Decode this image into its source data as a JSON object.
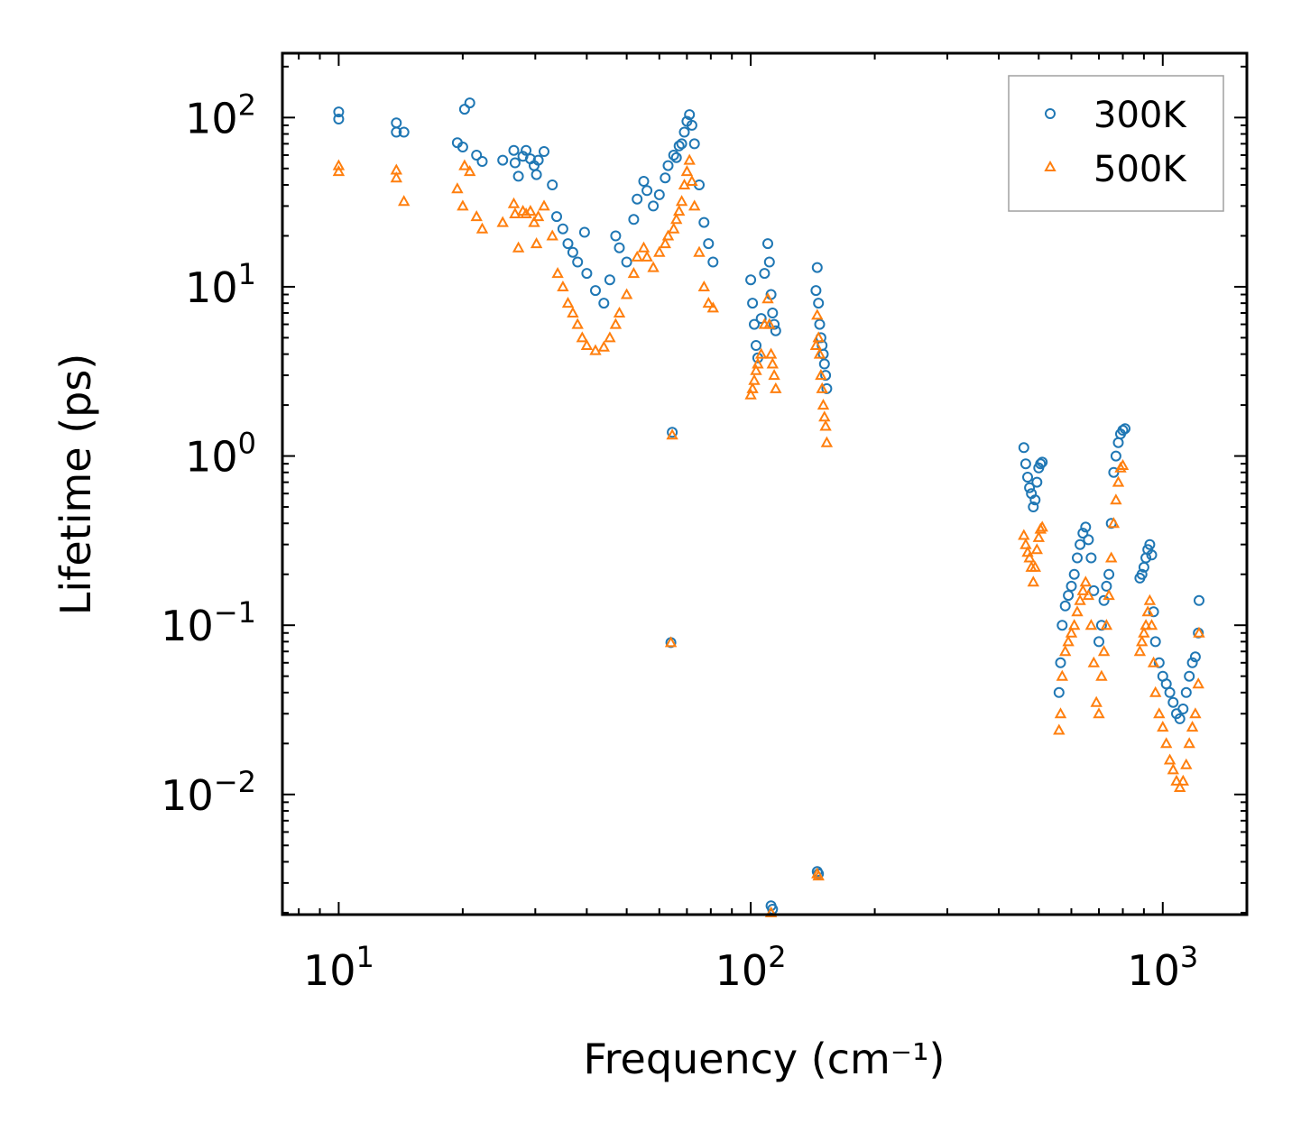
{
  "chart_data": {
    "type": "scatter",
    "xscale": "log",
    "yscale": "log",
    "xlabel": "Frequency (cm⁻¹)",
    "ylabel": "Lifetime (ps)",
    "xlim": [
      7.3,
      1600
    ],
    "ylim": [
      0.00195,
      240
    ],
    "x_ticks": [
      {
        "base": "10",
        "exp": "1",
        "value": 10
      },
      {
        "base": "10",
        "exp": "2",
        "value": 100
      },
      {
        "base": "10",
        "exp": "3",
        "value": 1000
      }
    ],
    "y_ticks": [
      {
        "base": "10",
        "exp": "−2",
        "value": 0.01
      },
      {
        "base": "10",
        "exp": "−1",
        "value": 0.1
      },
      {
        "base": "10",
        "exp": "0",
        "value": 1
      },
      {
        "base": "10",
        "exp": "1",
        "value": 10
      },
      {
        "base": "10",
        "exp": "2",
        "value": 100
      }
    ],
    "legend": {
      "position": "top-right"
    },
    "series": [
      {
        "name": "300K",
        "marker": "circle",
        "color": "#1f77b4",
        "points": [
          [
            10,
            108
          ],
          [
            10,
            98
          ],
          [
            13.8,
            93
          ],
          [
            13.8,
            82
          ],
          [
            14.4,
            82
          ],
          [
            19.4,
            71
          ],
          [
            20,
            67
          ],
          [
            20.2,
            112
          ],
          [
            20.8,
            122
          ],
          [
            21.6,
            60
          ],
          [
            22.3,
            55
          ],
          [
            25,
            56
          ],
          [
            26.6,
            64
          ],
          [
            26.8,
            54
          ],
          [
            27.3,
            45
          ],
          [
            28,
            59
          ],
          [
            28.5,
            64
          ],
          [
            29.2,
            57
          ],
          [
            29.8,
            52
          ],
          [
            30.2,
            46
          ],
          [
            30.5,
            56
          ],
          [
            31.5,
            63
          ],
          [
            33,
            40
          ],
          [
            33.8,
            26
          ],
          [
            35,
            22
          ],
          [
            36,
            18
          ],
          [
            37,
            16
          ],
          [
            38,
            14
          ],
          [
            39.5,
            21
          ],
          [
            40,
            12
          ],
          [
            42,
            9.5
          ],
          [
            44,
            8
          ],
          [
            45.5,
            11
          ],
          [
            47,
            20
          ],
          [
            48,
            17
          ],
          [
            50,
            14
          ],
          [
            52,
            25
          ],
          [
            53,
            33
          ],
          [
            55,
            42
          ],
          [
            56,
            37
          ],
          [
            58,
            30
          ],
          [
            60,
            35
          ],
          [
            62,
            44
          ],
          [
            63,
            52
          ],
          [
            64.5,
            1.38
          ],
          [
            64,
            0.079
          ],
          [
            65,
            60
          ],
          [
            66,
            58
          ],
          [
            67,
            68
          ],
          [
            68,
            70
          ],
          [
            69,
            82
          ],
          [
            70,
            95
          ],
          [
            71,
            104
          ],
          [
            72,
            90
          ],
          [
            73,
            70
          ],
          [
            75,
            40
          ],
          [
            77,
            24
          ],
          [
            79,
            18
          ],
          [
            81,
            14
          ],
          [
            100,
            11
          ],
          [
            101,
            8
          ],
          [
            102,
            6
          ],
          [
            103,
            4.5
          ],
          [
            104,
            3.8
          ],
          [
            106,
            6.5
          ],
          [
            108,
            12
          ],
          [
            110,
            18
          ],
          [
            111,
            14
          ],
          [
            112,
            9
          ],
          [
            113,
            7
          ],
          [
            114,
            6
          ],
          [
            115,
            5.5
          ],
          [
            112,
            0.0022
          ],
          [
            113,
            0.0021
          ],
          [
            144,
            9.5
          ],
          [
            145,
            13
          ],
          [
            146,
            8
          ],
          [
            147,
            6
          ],
          [
            148,
            5
          ],
          [
            149,
            4.5
          ],
          [
            150,
            4
          ],
          [
            151,
            3.5
          ],
          [
            152,
            3
          ],
          [
            153,
            2.5
          ],
          [
            145,
            0.0035
          ],
          [
            146,
            0.0034
          ],
          [
            460,
            1.12
          ],
          [
            465,
            0.9
          ],
          [
            470,
            0.75
          ],
          [
            475,
            0.65
          ],
          [
            480,
            0.6
          ],
          [
            485,
            0.5
          ],
          [
            490,
            0.55
          ],
          [
            495,
            0.7
          ],
          [
            500,
            0.85
          ],
          [
            505,
            0.9
          ],
          [
            510,
            0.92
          ],
          [
            560,
            0.04
          ],
          [
            565,
            0.06
          ],
          [
            570,
            0.1
          ],
          [
            580,
            0.13
          ],
          [
            590,
            0.15
          ],
          [
            600,
            0.17
          ],
          [
            610,
            0.2
          ],
          [
            620,
            0.25
          ],
          [
            630,
            0.3
          ],
          [
            640,
            0.35
          ],
          [
            650,
            0.38
          ],
          [
            660,
            0.32
          ],
          [
            670,
            0.25
          ],
          [
            680,
            0.16
          ],
          [
            700,
            0.08
          ],
          [
            710,
            0.1
          ],
          [
            720,
            0.14
          ],
          [
            730,
            0.17
          ],
          [
            740,
            0.2
          ],
          [
            750,
            0.4
          ],
          [
            760,
            0.8
          ],
          [
            770,
            1.0
          ],
          [
            780,
            1.2
          ],
          [
            790,
            1.35
          ],
          [
            800,
            1.42
          ],
          [
            810,
            1.45
          ],
          [
            880,
            0.19
          ],
          [
            890,
            0.2
          ],
          [
            900,
            0.22
          ],
          [
            910,
            0.25
          ],
          [
            920,
            0.28
          ],
          [
            930,
            0.3
          ],
          [
            940,
            0.26
          ],
          [
            950,
            0.12
          ],
          [
            960,
            0.08
          ],
          [
            980,
            0.06
          ],
          [
            1000,
            0.05
          ],
          [
            1020,
            0.045
          ],
          [
            1040,
            0.04
          ],
          [
            1060,
            0.035
          ],
          [
            1080,
            0.03
          ],
          [
            1100,
            0.028
          ],
          [
            1120,
            0.032
          ],
          [
            1140,
            0.04
          ],
          [
            1160,
            0.05
          ],
          [
            1180,
            0.06
          ],
          [
            1200,
            0.065
          ],
          [
            1220,
            0.09
          ],
          [
            1225,
            0.14
          ]
        ]
      },
      {
        "name": "500K",
        "marker": "triangle",
        "color": "#ff7f0e",
        "points": [
          [
            10,
            52
          ],
          [
            10,
            48
          ],
          [
            13.8,
            49
          ],
          [
            13.8,
            44
          ],
          [
            14.4,
            32
          ],
          [
            19.4,
            38
          ],
          [
            20,
            30
          ],
          [
            20.2,
            52
          ],
          [
            20.8,
            48
          ],
          [
            21.6,
            26
          ],
          [
            22.3,
            22
          ],
          [
            25,
            24
          ],
          [
            26.6,
            31
          ],
          [
            26.8,
            27
          ],
          [
            27.3,
            17
          ],
          [
            28,
            28
          ],
          [
            28.5,
            27
          ],
          [
            29.2,
            28
          ],
          [
            29.8,
            24
          ],
          [
            30.2,
            18
          ],
          [
            30.5,
            26
          ],
          [
            31.5,
            30
          ],
          [
            33,
            20
          ],
          [
            34,
            12
          ],
          [
            35,
            10
          ],
          [
            36,
            8
          ],
          [
            37,
            7
          ],
          [
            38,
            6
          ],
          [
            39,
            5
          ],
          [
            40,
            4.5
          ],
          [
            42,
            4.2
          ],
          [
            44,
            4.4
          ],
          [
            45.5,
            5
          ],
          [
            47,
            6
          ],
          [
            48,
            7
          ],
          [
            50,
            9
          ],
          [
            52,
            12
          ],
          [
            53,
            15
          ],
          [
            55,
            17
          ],
          [
            56,
            15
          ],
          [
            58,
            13
          ],
          [
            60,
            16
          ],
          [
            62,
            18
          ],
          [
            63,
            20
          ],
          [
            64.5,
            1.33
          ],
          [
            64,
            0.079
          ],
          [
            65,
            22
          ],
          [
            66,
            25
          ],
          [
            67,
            28
          ],
          [
            68,
            32
          ],
          [
            69,
            40
          ],
          [
            70,
            48
          ],
          [
            71,
            56
          ],
          [
            72,
            42
          ],
          [
            73,
            30
          ],
          [
            75,
            16
          ],
          [
            77,
            10
          ],
          [
            79,
            8
          ],
          [
            81,
            7.5
          ],
          [
            100,
            2.3
          ],
          [
            101,
            2.5
          ],
          [
            102,
            2.8
          ],
          [
            103,
            3.2
          ],
          [
            104,
            3.5
          ],
          [
            106,
            4
          ],
          [
            108,
            6
          ],
          [
            110,
            8.5
          ],
          [
            111,
            6
          ],
          [
            112,
            4
          ],
          [
            113,
            3.5
          ],
          [
            114,
            3
          ],
          [
            115,
            2.5
          ],
          [
            112,
            0.002
          ],
          [
            113,
            0.0019
          ],
          [
            144,
            4.5
          ],
          [
            145,
            6.8
          ],
          [
            146,
            5
          ],
          [
            147,
            4
          ],
          [
            148,
            3
          ],
          [
            149,
            2.5
          ],
          [
            150,
            2
          ],
          [
            151,
            1.7
          ],
          [
            152,
            1.5
          ],
          [
            153,
            1.2
          ],
          [
            145,
            0.0034
          ],
          [
            146,
            0.0033
          ],
          [
            460,
            0.34
          ],
          [
            465,
            0.3
          ],
          [
            470,
            0.27
          ],
          [
            475,
            0.25
          ],
          [
            480,
            0.22
          ],
          [
            485,
            0.18
          ],
          [
            490,
            0.22
          ],
          [
            495,
            0.28
          ],
          [
            500,
            0.33
          ],
          [
            505,
            0.37
          ],
          [
            510,
            0.38
          ],
          [
            560,
            0.024
          ],
          [
            565,
            0.03
          ],
          [
            570,
            0.05
          ],
          [
            580,
            0.07
          ],
          [
            590,
            0.08
          ],
          [
            600,
            0.09
          ],
          [
            610,
            0.1
          ],
          [
            620,
            0.12
          ],
          [
            630,
            0.14
          ],
          [
            640,
            0.16
          ],
          [
            650,
            0.18
          ],
          [
            660,
            0.15
          ],
          [
            670,
            0.1
          ],
          [
            680,
            0.06
          ],
          [
            690,
            0.035
          ],
          [
            700,
            0.03
          ],
          [
            710,
            0.05
          ],
          [
            720,
            0.07
          ],
          [
            730,
            0.1
          ],
          [
            740,
            0.15
          ],
          [
            750,
            0.25
          ],
          [
            760,
            0.4
          ],
          [
            770,
            0.55
          ],
          [
            780,
            0.7
          ],
          [
            790,
            0.85
          ],
          [
            800,
            0.88
          ],
          [
            880,
            0.07
          ],
          [
            890,
            0.08
          ],
          [
            900,
            0.09
          ],
          [
            910,
            0.1
          ],
          [
            920,
            0.12
          ],
          [
            930,
            0.14
          ],
          [
            940,
            0.1
          ],
          [
            950,
            0.06
          ],
          [
            960,
            0.04
          ],
          [
            980,
            0.03
          ],
          [
            1000,
            0.025
          ],
          [
            1020,
            0.02
          ],
          [
            1040,
            0.016
          ],
          [
            1060,
            0.014
          ],
          [
            1080,
            0.012
          ],
          [
            1100,
            0.011
          ],
          [
            1120,
            0.012
          ],
          [
            1140,
            0.015
          ],
          [
            1160,
            0.02
          ],
          [
            1180,
            0.025
          ],
          [
            1200,
            0.03
          ],
          [
            1220,
            0.045
          ],
          [
            1225,
            0.09
          ]
        ]
      }
    ]
  }
}
